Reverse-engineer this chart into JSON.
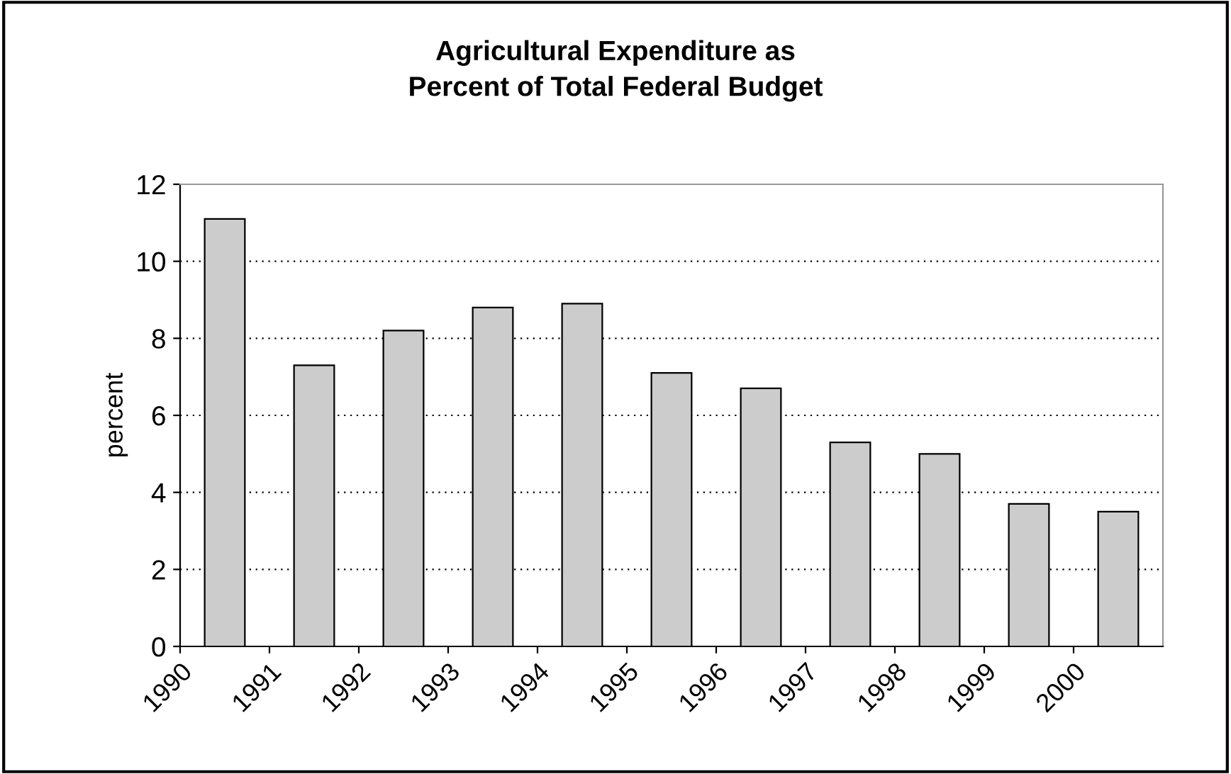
{
  "chart_data": {
    "type": "bar",
    "title": "Agricultural Expenditure as\nPercent of Total Federal Budget",
    "ylabel": "percent",
    "categories": [
      "1990",
      "1991",
      "1992",
      "1993",
      "1994",
      "1995",
      "1996",
      "1997",
      "1998",
      "1999",
      "2000"
    ],
    "values": [
      11.1,
      7.3,
      8.2,
      8.8,
      8.9,
      7.1,
      6.7,
      5.3,
      5.0,
      3.7,
      3.5
    ],
    "color": "#cccccc",
    "ylim": [
      0,
      12
    ],
    "yticks": [
      0,
      2,
      4,
      6,
      8,
      10,
      12
    ],
    "grid": "y",
    "legend": false
  }
}
